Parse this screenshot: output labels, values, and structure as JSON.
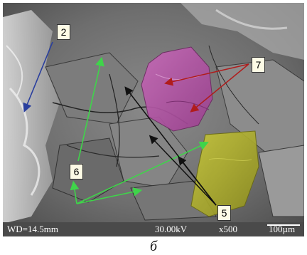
{
  "micrograph": {
    "labels": [
      "2",
      "6",
      "7",
      "5"
    ],
    "infobar": {
      "wd": "WD=14.5mm",
      "voltage": "30.00kV",
      "magnification": "x500",
      "scale": "100µm"
    }
  },
  "caption": "б",
  "colors": {
    "arrow_blue": "#2a3f9e",
    "arrow_green": "#3fd44a",
    "arrow_red": "#b01c1c",
    "arrow_black": "#111111",
    "phase_magenta": "#b84fa8",
    "phase_yellow": "#b5b52a",
    "infobar": "#4a4a4a"
  }
}
